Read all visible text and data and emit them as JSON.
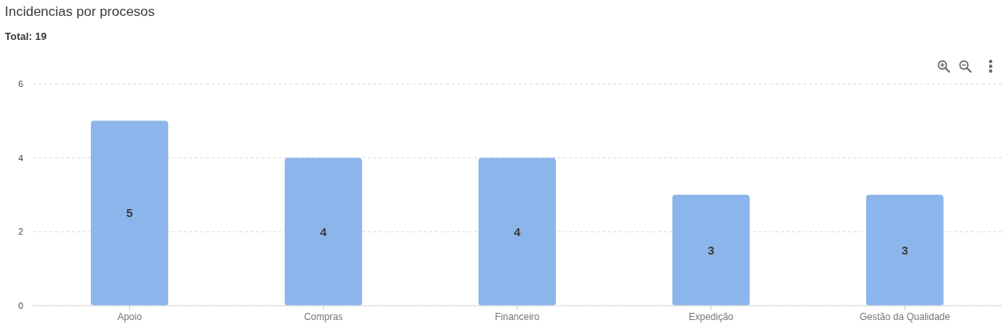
{
  "chart_data": {
    "type": "bar",
    "title": "Incidencias por procesos",
    "subtitle": "Total: 19",
    "categories": [
      "Apoio",
      "Compras",
      "Financeiro",
      "Expedição",
      "Gestão da Qualidade"
    ],
    "values": [
      5,
      4,
      4,
      3,
      3
    ],
    "color": "#8cb6eb",
    "ylim": [
      0,
      6
    ],
    "yticks": [
      0,
      2,
      4,
      6
    ],
    "grid": "y",
    "data_labels": true
  }
}
